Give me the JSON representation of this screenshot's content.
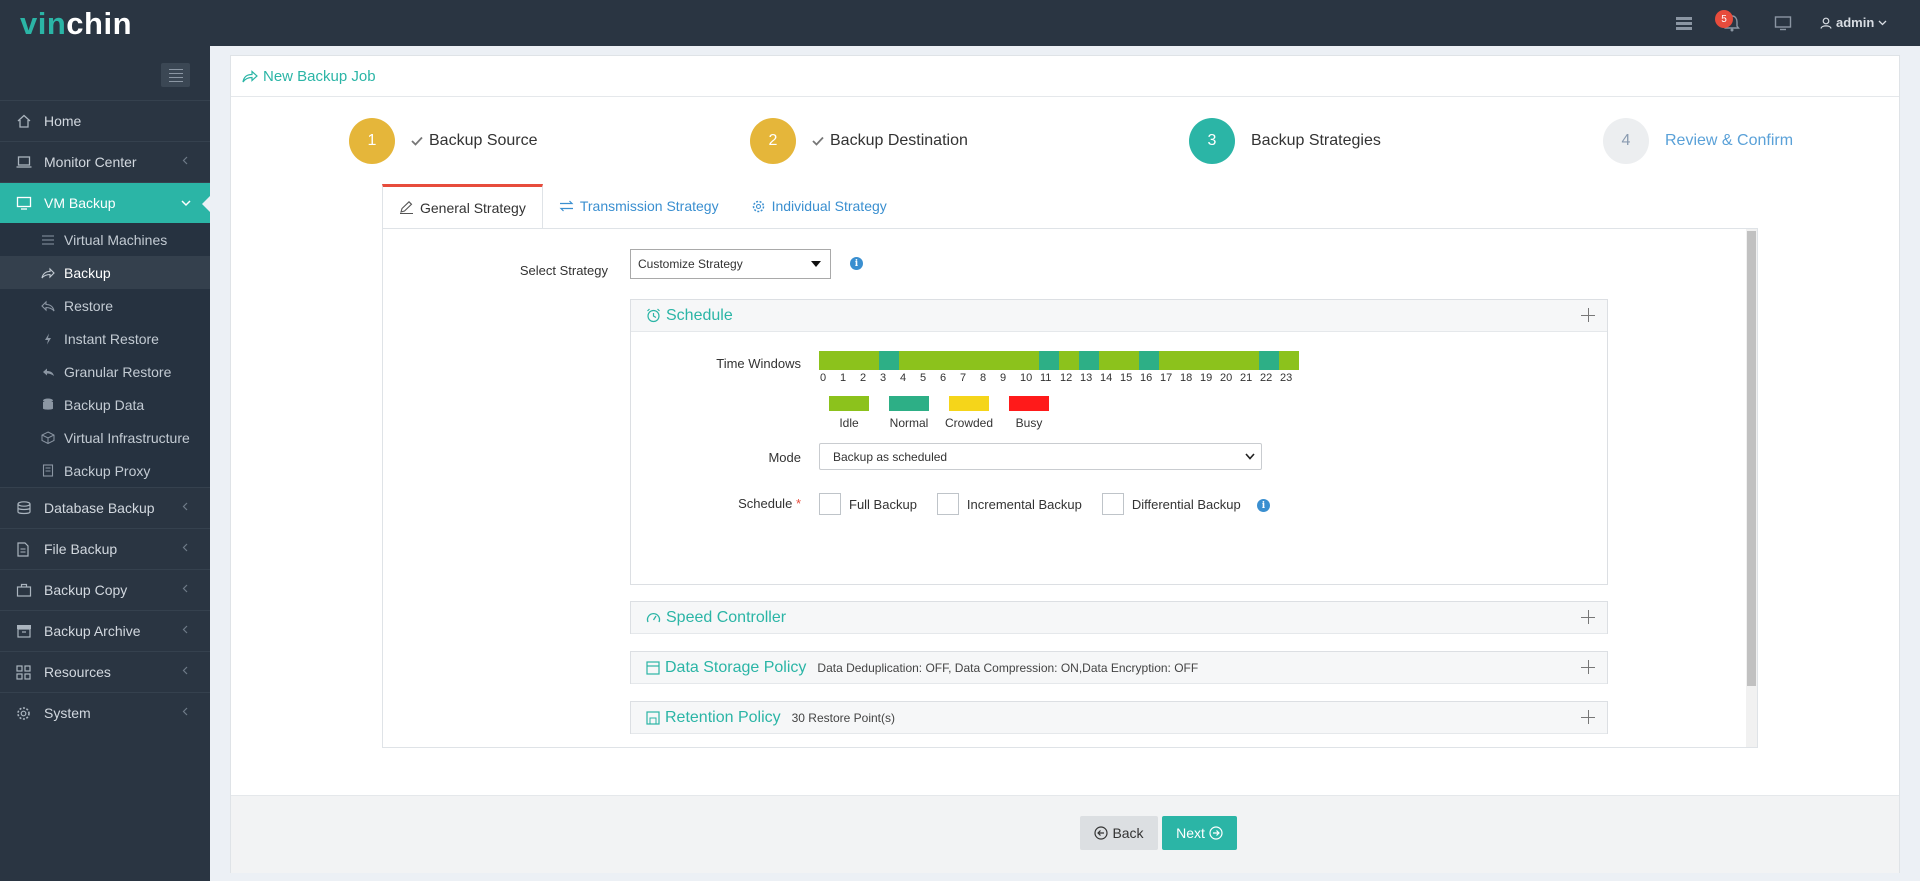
{
  "app": {
    "logo_v": "vin",
    "logo_rest": "chin"
  },
  "topbar": {
    "notification_count": "5",
    "user": "admin"
  },
  "sidebar": {
    "menu": [
      {
        "label": "Home",
        "icon": "home-icon"
      },
      {
        "label": "Monitor Center",
        "icon": "monitor-icon"
      },
      {
        "label": "VM Backup",
        "icon": "desktop-icon"
      }
    ],
    "sub": [
      {
        "label": "Virtual Machines"
      },
      {
        "label": "Backup"
      },
      {
        "label": "Restore"
      },
      {
        "label": "Instant Restore"
      },
      {
        "label": "Granular Restore"
      },
      {
        "label": "Backup Data"
      },
      {
        "label": "Virtual Infrastructure"
      },
      {
        "label": "Backup Proxy"
      }
    ],
    "menu2": [
      {
        "label": "Database Backup"
      },
      {
        "label": "File Backup"
      },
      {
        "label": "Backup Copy"
      },
      {
        "label": "Backup Archive"
      },
      {
        "label": "Resources"
      },
      {
        "label": "System"
      }
    ]
  },
  "page": {
    "title": "New Backup Job"
  },
  "steps": [
    {
      "num": "1",
      "label": "Backup Source",
      "state": "done"
    },
    {
      "num": "2",
      "label": "Backup Destination",
      "state": "done"
    },
    {
      "num": "3",
      "label": "Backup Strategies",
      "state": "current"
    },
    {
      "num": "4",
      "label": "Review & Confirm",
      "state": "todo"
    }
  ],
  "tabs": [
    {
      "label": "General Strategy"
    },
    {
      "label": "Transmission Strategy"
    },
    {
      "label": "Individual Strategy"
    }
  ],
  "strategy": {
    "label": "Select Strategy",
    "value": "Customize Strategy"
  },
  "schedule_box": {
    "title": "Schedule",
    "time_windows_label": "Time Windows",
    "hours": [
      "0",
      "1",
      "2",
      "3",
      "4",
      "5",
      "6",
      "7",
      "8",
      "9",
      "10",
      "11",
      "12",
      "13",
      "14",
      "15",
      "16",
      "17",
      "18",
      "19",
      "20",
      "21",
      "22",
      "23"
    ],
    "hour_status": [
      "idle",
      "idle",
      "idle",
      "normal",
      "idle",
      "idle",
      "idle",
      "idle",
      "idle",
      "idle",
      "idle",
      "normal",
      "idle",
      "normal",
      "idle",
      "idle",
      "normal",
      "idle",
      "idle",
      "idle",
      "idle",
      "idle",
      "normal",
      "idle"
    ],
    "legend": [
      {
        "label": "Idle",
        "color": "#8cc21c"
      },
      {
        "label": "Normal",
        "color": "#2daf86"
      },
      {
        "label": "Crowded",
        "color": "#f5d51a"
      },
      {
        "label": "Busy",
        "color": "#ff1a1a"
      }
    ],
    "mode_label": "Mode",
    "mode_value": "Backup as scheduled",
    "schedule_label": "Schedule",
    "required_mark": "*",
    "options": [
      {
        "label": "Full Backup"
      },
      {
        "label": "Incremental Backup"
      },
      {
        "label": "Differential Backup"
      }
    ]
  },
  "speed_box": {
    "title": "Speed Controller"
  },
  "storage_box": {
    "title": "Data Storage Policy",
    "summary": "Data Deduplication: OFF, Data Compression: ON,Data Encryption: OFF"
  },
  "retention_box": {
    "title": "Retention Policy",
    "summary": "30 Restore Point(s)"
  },
  "footer": {
    "back": "Back",
    "next": "Next"
  },
  "colors": {
    "accent": "#2bb5a6",
    "done": "#e5b63a",
    "sidebar": "#2a3542",
    "link": "#3a8fd0"
  }
}
